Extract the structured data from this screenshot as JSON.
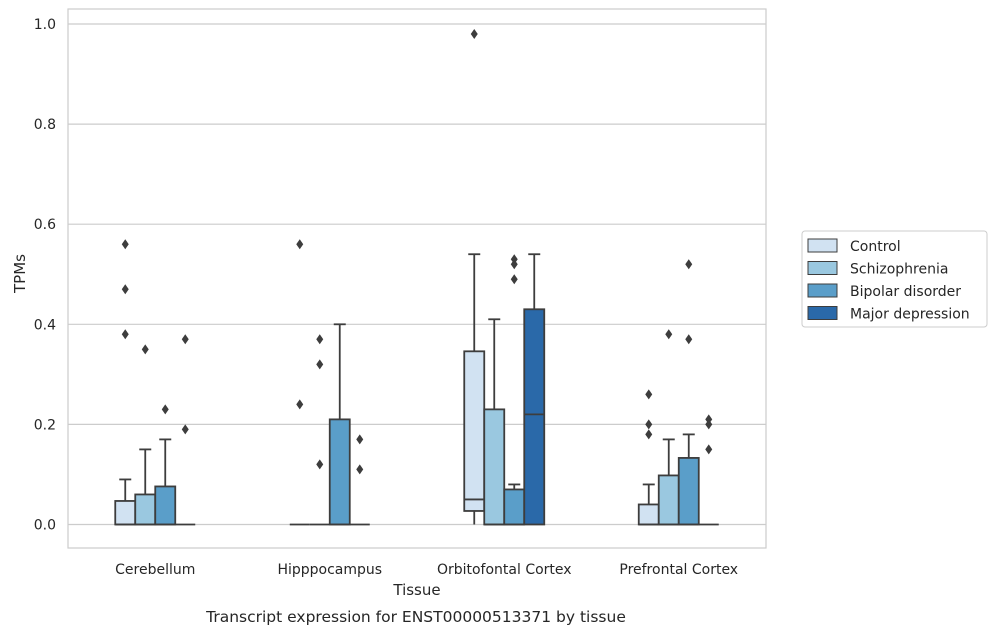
{
  "chart_data": {
    "type": "box",
    "caption": "Transcript expression for ENST00000513371 by tissue",
    "xlabel": "Tissue",
    "ylabel": "TPMs",
    "ylim": [
      -0.047,
      1.03
    ],
    "yticks": [
      "0.0",
      "0.2",
      "0.4",
      "0.6",
      "0.8",
      "1.0"
    ],
    "ytick_values": [
      0.0,
      0.2,
      0.4,
      0.6,
      0.8,
      1.0
    ],
    "grid": "horizontal",
    "legend_position": "right",
    "categories": [
      "Cerebellum",
      "Hipppocampus",
      "Orbitofontal Cortex",
      "Prefrontal Cortex"
    ],
    "series": [
      {
        "name": "Control",
        "color": "#d1e2f2",
        "boxes": [
          {
            "q1": 0.0,
            "median": 0.0,
            "q3": 0.047,
            "whisker_low": 0.0,
            "whisker_high": 0.09,
            "outliers": [
              0.56,
              0.47,
              0.38
            ]
          },
          {
            "q1": 0.0,
            "median": 0.0,
            "q3": 0.0,
            "whisker_low": 0.0,
            "whisker_high": 0.0,
            "outliers": [
              0.56,
              0.24
            ]
          },
          {
            "q1": 0.027,
            "median": 0.05,
            "q3": 0.346,
            "whisker_low": 0.0,
            "whisker_high": 0.54,
            "outliers": [
              0.98
            ]
          },
          {
            "q1": 0.0,
            "median": 0.0,
            "q3": 0.04,
            "whisker_low": 0.0,
            "whisker_high": 0.08,
            "outliers": [
              0.26,
              0.2,
              0.18
            ]
          }
        ]
      },
      {
        "name": "Schizophrenia",
        "color": "#9ac8e0",
        "boxes": [
          {
            "q1": 0.0,
            "median": 0.0,
            "q3": 0.06,
            "whisker_low": 0.0,
            "whisker_high": 0.15,
            "outliers": [
              0.35
            ]
          },
          {
            "q1": 0.0,
            "median": 0.0,
            "q3": 0.0,
            "whisker_low": 0.0,
            "whisker_high": 0.0,
            "outliers": [
              0.37,
              0.32,
              0.12
            ]
          },
          {
            "q1": 0.0,
            "median": 0.0,
            "q3": 0.23,
            "whisker_low": 0.0,
            "whisker_high": 0.41,
            "outliers": []
          },
          {
            "q1": 0.0,
            "median": 0.0,
            "q3": 0.098,
            "whisker_low": 0.0,
            "whisker_high": 0.17,
            "outliers": [
              0.38
            ]
          }
        ]
      },
      {
        "name": "Bipolar disorder",
        "color": "#5a9ec9",
        "boxes": [
          {
            "q1": 0.0,
            "median": 0.0,
            "q3": 0.076,
            "whisker_low": 0.0,
            "whisker_high": 0.17,
            "outliers": [
              0.23
            ]
          },
          {
            "q1": 0.0,
            "median": 0.0,
            "q3": 0.21,
            "whisker_low": 0.0,
            "whisker_high": 0.4,
            "outliers": []
          },
          {
            "q1": 0.0,
            "median": 0.0,
            "q3": 0.07,
            "whisker_low": 0.0,
            "whisker_high": 0.08,
            "outliers": [
              0.53,
              0.52,
              0.49
            ]
          },
          {
            "q1": 0.0,
            "median": 0.0,
            "q3": 0.133,
            "whisker_low": 0.0,
            "whisker_high": 0.18,
            "outliers": [
              0.52,
              0.37
            ]
          }
        ]
      },
      {
        "name": "Major depression",
        "color": "#2a69a9",
        "boxes": [
          {
            "q1": 0.0,
            "median": 0.0,
            "q3": 0.0,
            "whisker_low": 0.0,
            "whisker_high": 0.0,
            "outliers": [
              0.37,
              0.19
            ]
          },
          {
            "q1": 0.0,
            "median": 0.0,
            "q3": 0.0,
            "whisker_low": 0.0,
            "whisker_high": 0.0,
            "outliers": [
              0.17,
              0.11
            ]
          },
          {
            "q1": 0.0,
            "median": 0.22,
            "q3": 0.43,
            "whisker_low": 0.0,
            "whisker_high": 0.54,
            "outliers": []
          },
          {
            "q1": 0.0,
            "median": 0.0,
            "q3": 0.0,
            "whisker_low": 0.0,
            "whisker_high": 0.0,
            "outliers": [
              0.21,
              0.2,
              0.15
            ]
          }
        ]
      }
    ]
  }
}
